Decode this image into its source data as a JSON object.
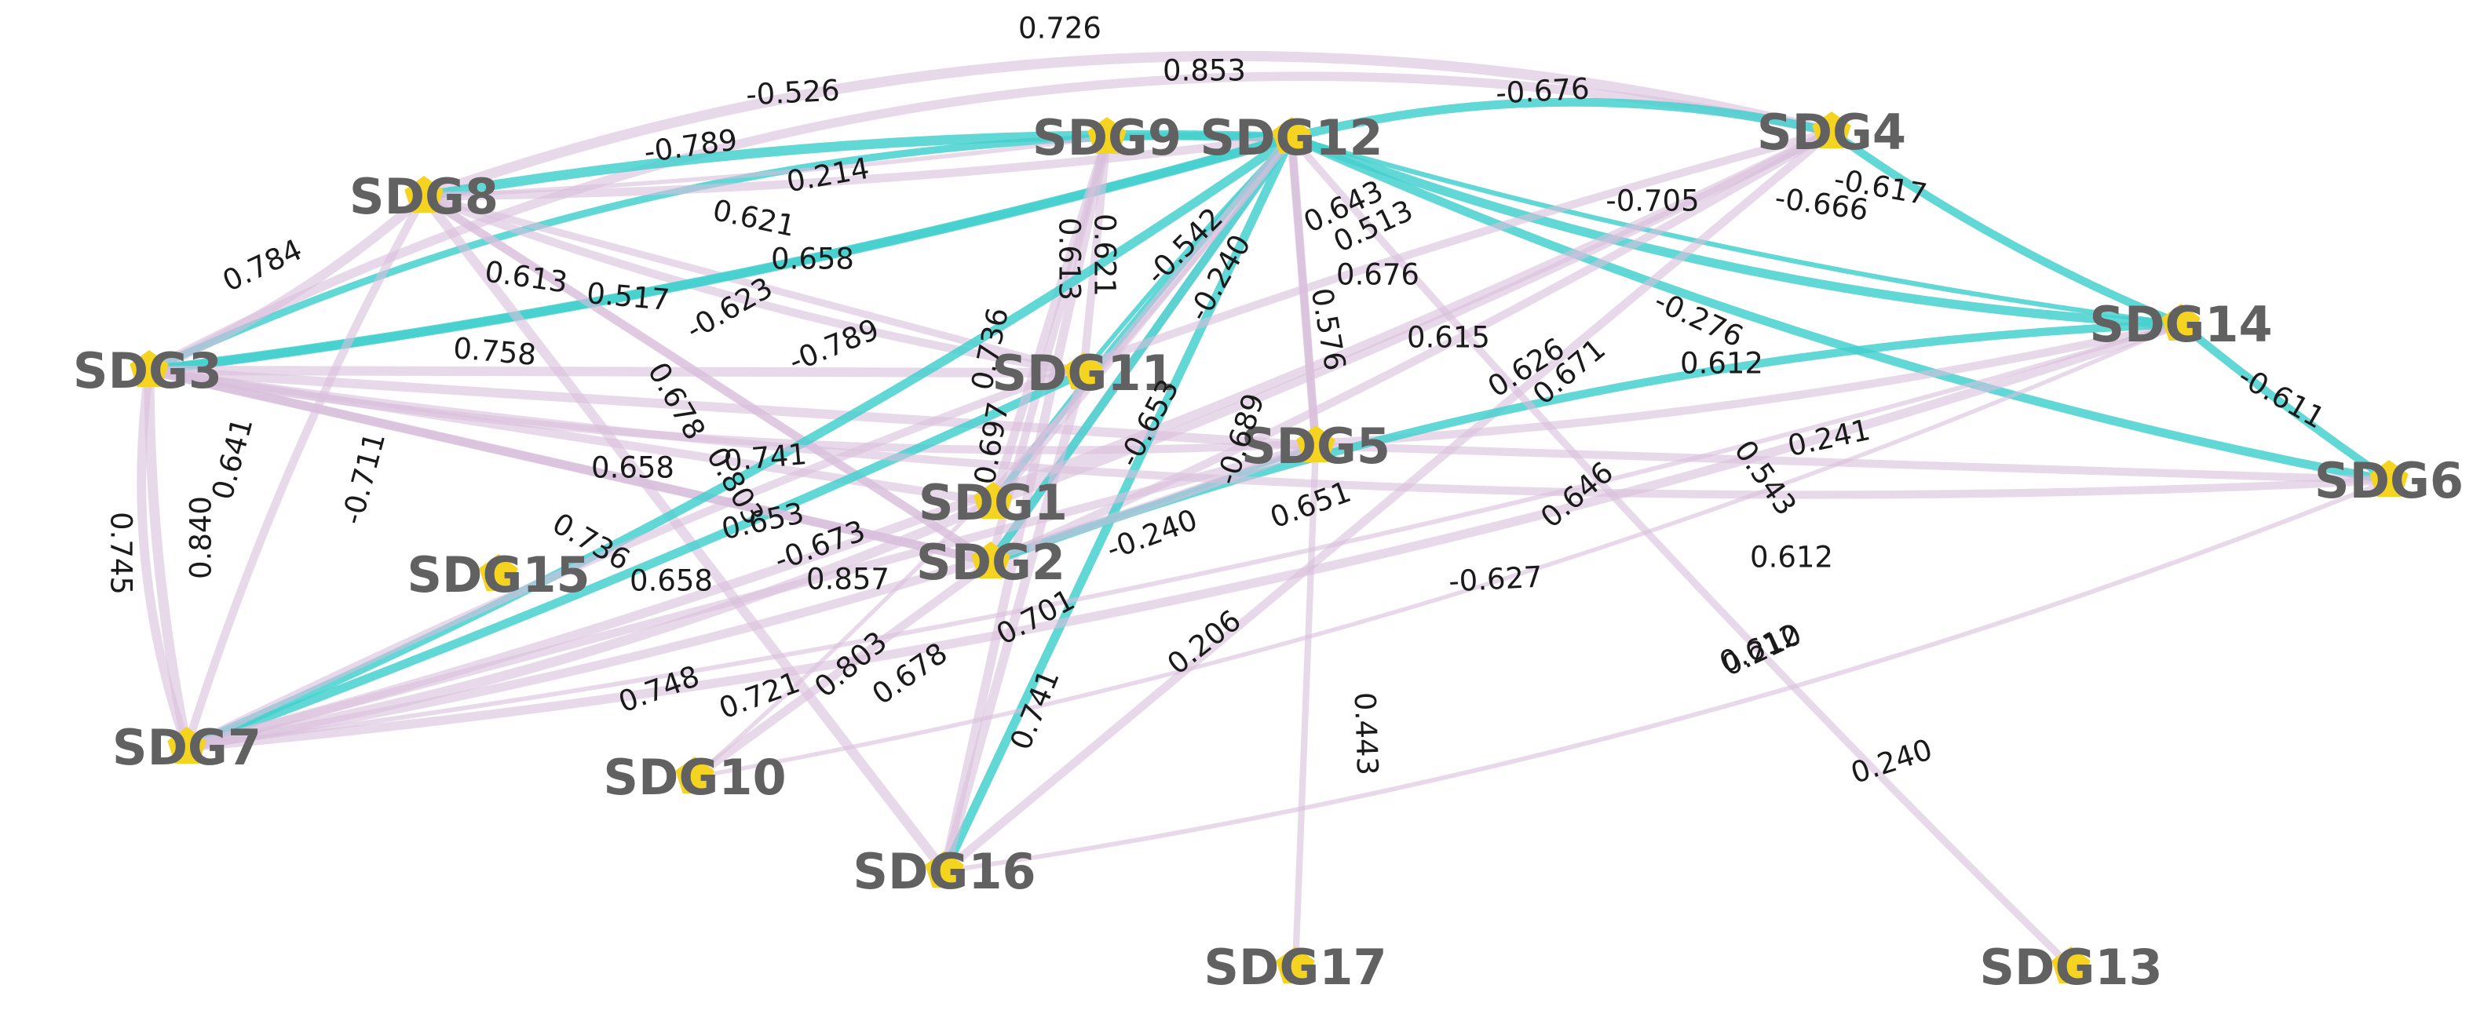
{
  "colors": {
    "positive": "#d9bfdc",
    "negative": "#45d0cf",
    "node": "#f5d421",
    "label": "#616161",
    "edge_label": "#1a1a1a"
  },
  "nodes": [
    {
      "id": "SDG1",
      "label": "SDG1"
    },
    {
      "id": "SDG2",
      "label": "SDG2"
    },
    {
      "id": "SDG3",
      "label": "SDG3"
    },
    {
      "id": "SDG4",
      "label": "SDG4"
    },
    {
      "id": "SDG5",
      "label": "SDG5"
    },
    {
      "id": "SDG6",
      "label": "SDG6"
    },
    {
      "id": "SDG7",
      "label": "SDG7"
    },
    {
      "id": "SDG8",
      "label": "SDG8"
    },
    {
      "id": "SDG9",
      "label": "SDG9"
    },
    {
      "id": "SDG10",
      "label": "SDG10"
    },
    {
      "id": "SDG11",
      "label": "SDG11"
    },
    {
      "id": "SDG12",
      "label": "SDG12"
    },
    {
      "id": "SDG13",
      "label": "SDG13"
    },
    {
      "id": "SDG14",
      "label": "SDG14"
    },
    {
      "id": "SDG15",
      "label": "SDG15"
    },
    {
      "id": "SDG16",
      "label": "SDG16"
    },
    {
      "id": "SDG17",
      "label": "SDG17"
    }
  ],
  "edges": [
    {
      "source": "SDG3",
      "target": "SDG4",
      "label": "0.726"
    },
    {
      "source": "SDG8",
      "target": "SDG4",
      "label": "0.853"
    },
    {
      "source": "SDG3",
      "target": "SDG12",
      "label": "-0.526"
    },
    {
      "source": "SDG12",
      "target": "SDG4",
      "label": "-0.676"
    },
    {
      "source": "SDG8",
      "target": "SDG12",
      "label": "-0.789"
    },
    {
      "source": "SDG8",
      "target": "SDG9",
      "label": "0.214"
    },
    {
      "source": "SDG12",
      "target": "SDG14",
      "label": "-0.705"
    },
    {
      "source": "SDG4",
      "target": "SDG14",
      "label": "-0.617"
    },
    {
      "source": "SDG12",
      "target": "SDG6",
      "label": "-0.666"
    },
    {
      "source": "SDG3",
      "target": "SDG8",
      "label": "0.784"
    },
    {
      "source": "SDG8",
      "target": "SDG11",
      "label": "0.621"
    },
    {
      "source": "SDG8",
      "target": "SDG12",
      "label": "0.658"
    },
    {
      "source": "SDG8",
      "target": "SDG2",
      "label": "0.613"
    },
    {
      "source": "SDG8",
      "target": "SDG11",
      "label": "0.517"
    },
    {
      "source": "SDG3",
      "target": "SDG12",
      "label": "-0.623"
    },
    {
      "source": "SDG3",
      "target": "SDG12",
      "label": "-0.789"
    },
    {
      "source": "SDG3",
      "target": "SDG11",
      "label": "0.758"
    },
    {
      "source": "SDG9",
      "target": "SDG2",
      "label": "0.613"
    },
    {
      "source": "SDG9",
      "target": "SDG11",
      "label": "0.621"
    },
    {
      "source": "SDG12",
      "target": "SDG1",
      "label": "-0.542"
    },
    {
      "source": "SDG12",
      "target": "SDG11",
      "label": "-0.240"
    },
    {
      "source": "SDG12",
      "target": "SDG2",
      "label": "0.643"
    },
    {
      "source": "SDG12",
      "target": "SDG5",
      "label": "0.513"
    },
    {
      "source": "SDG12",
      "target": "SDG5",
      "label": "0.676"
    },
    {
      "source": "SDG12",
      "target": "SDG5",
      "label": "0.576"
    },
    {
      "source": "SDG12",
      "target": "SDG14",
      "label": "-0.276"
    },
    {
      "source": "SDG3",
      "target": "SDG14",
      "label": "0.615"
    },
    {
      "source": "SDG2",
      "target": "SDG4",
      "label": "0.626"
    },
    {
      "source": "SDG1",
      "target": "SDG4",
      "label": "0.671"
    },
    {
      "source": "SDG5",
      "target": "SDG6",
      "label": "0.612"
    },
    {
      "source": "SDG9",
      "target": "SDG16",
      "label": "0.736"
    },
    {
      "source": "SDG8",
      "target": "SDG2",
      "label": "0.678"
    },
    {
      "source": "SDG3",
      "target": "SDG5",
      "label": "0.741"
    },
    {
      "source": "SDG3",
      "target": "SDG1",
      "label": "0.658"
    },
    {
      "source": "SDG8",
      "target": "SDG16",
      "label": "0.803"
    },
    {
      "source": "SDG12",
      "target": "SDG2",
      "label": "-0.653"
    },
    {
      "source": "SDG12",
      "target": "SDG16",
      "label": "-0.689"
    },
    {
      "source": "SDG3",
      "target": "SDG2",
      "label": "0.653"
    },
    {
      "source": "SDG7",
      "target": "SDG11",
      "label": "-0.673"
    },
    {
      "source": "SDG9",
      "target": "SDG1",
      "label": "0.697"
    },
    {
      "source": "SDG3",
      "target": "SDG2",
      "label": "0.736"
    },
    {
      "source": "SDG3",
      "target": "SDG2",
      "label": "0.658"
    },
    {
      "source": "SDG7",
      "target": "SDG12",
      "label": "-0.711"
    },
    {
      "source": "SDG3",
      "target": "SDG7",
      "label": "0.745"
    },
    {
      "source": "SDG3",
      "target": "SDG7",
      "label": "0.840"
    },
    {
      "source": "SDG8",
      "target": "SDG7",
      "label": "0.641"
    },
    {
      "source": "SDG12",
      "target": "SDG1",
      "label": "0.857"
    },
    {
      "source": "SDG4",
      "target": "SDG16",
      "label": "0.646"
    },
    {
      "source": "SDG14",
      "target": "SDG2",
      "label": "-0.627"
    },
    {
      "source": "SDG2",
      "target": "SDG5",
      "label": "-0.240"
    },
    {
      "source": "SDG7",
      "target": "SDG5",
      "label": "0.651"
    },
    {
      "source": "SDG12",
      "target": "SDG13",
      "label": "0.543"
    },
    {
      "source": "SDG3",
      "target": "SDG6",
      "label": "0.612"
    },
    {
      "source": "SDG7",
      "target": "SDG14",
      "label": "0.241"
    },
    {
      "source": "SDG4",
      "target": "SDG7",
      "label": "0.612"
    },
    {
      "source": "SDG14",
      "target": "SDG6",
      "label": "-0.611"
    },
    {
      "source": "SDG7",
      "target": "SDG4",
      "label": "0.748"
    },
    {
      "source": "SDG7",
      "target": "SDG14",
      "label": "0.721"
    },
    {
      "source": "SDG7",
      "target": "SDG1",
      "label": "0.803"
    },
    {
      "source": "SDG10",
      "target": "SDG2",
      "label": "0.678"
    },
    {
      "source": "SDG7",
      "target": "SDG5",
      "label": "0.701"
    },
    {
      "source": "SDG10",
      "target": "SDG12",
      "label": "0.206"
    },
    {
      "source": "SDG16",
      "target": "SDG11",
      "label": "0.741"
    },
    {
      "source": "SDG5",
      "target": "SDG17",
      "label": "0.443"
    },
    {
      "source": "SDG10",
      "target": "SDG14",
      "label": "0.210"
    },
    {
      "source": "SDG16",
      "target": "SDG6",
      "label": "0.240"
    }
  ]
}
